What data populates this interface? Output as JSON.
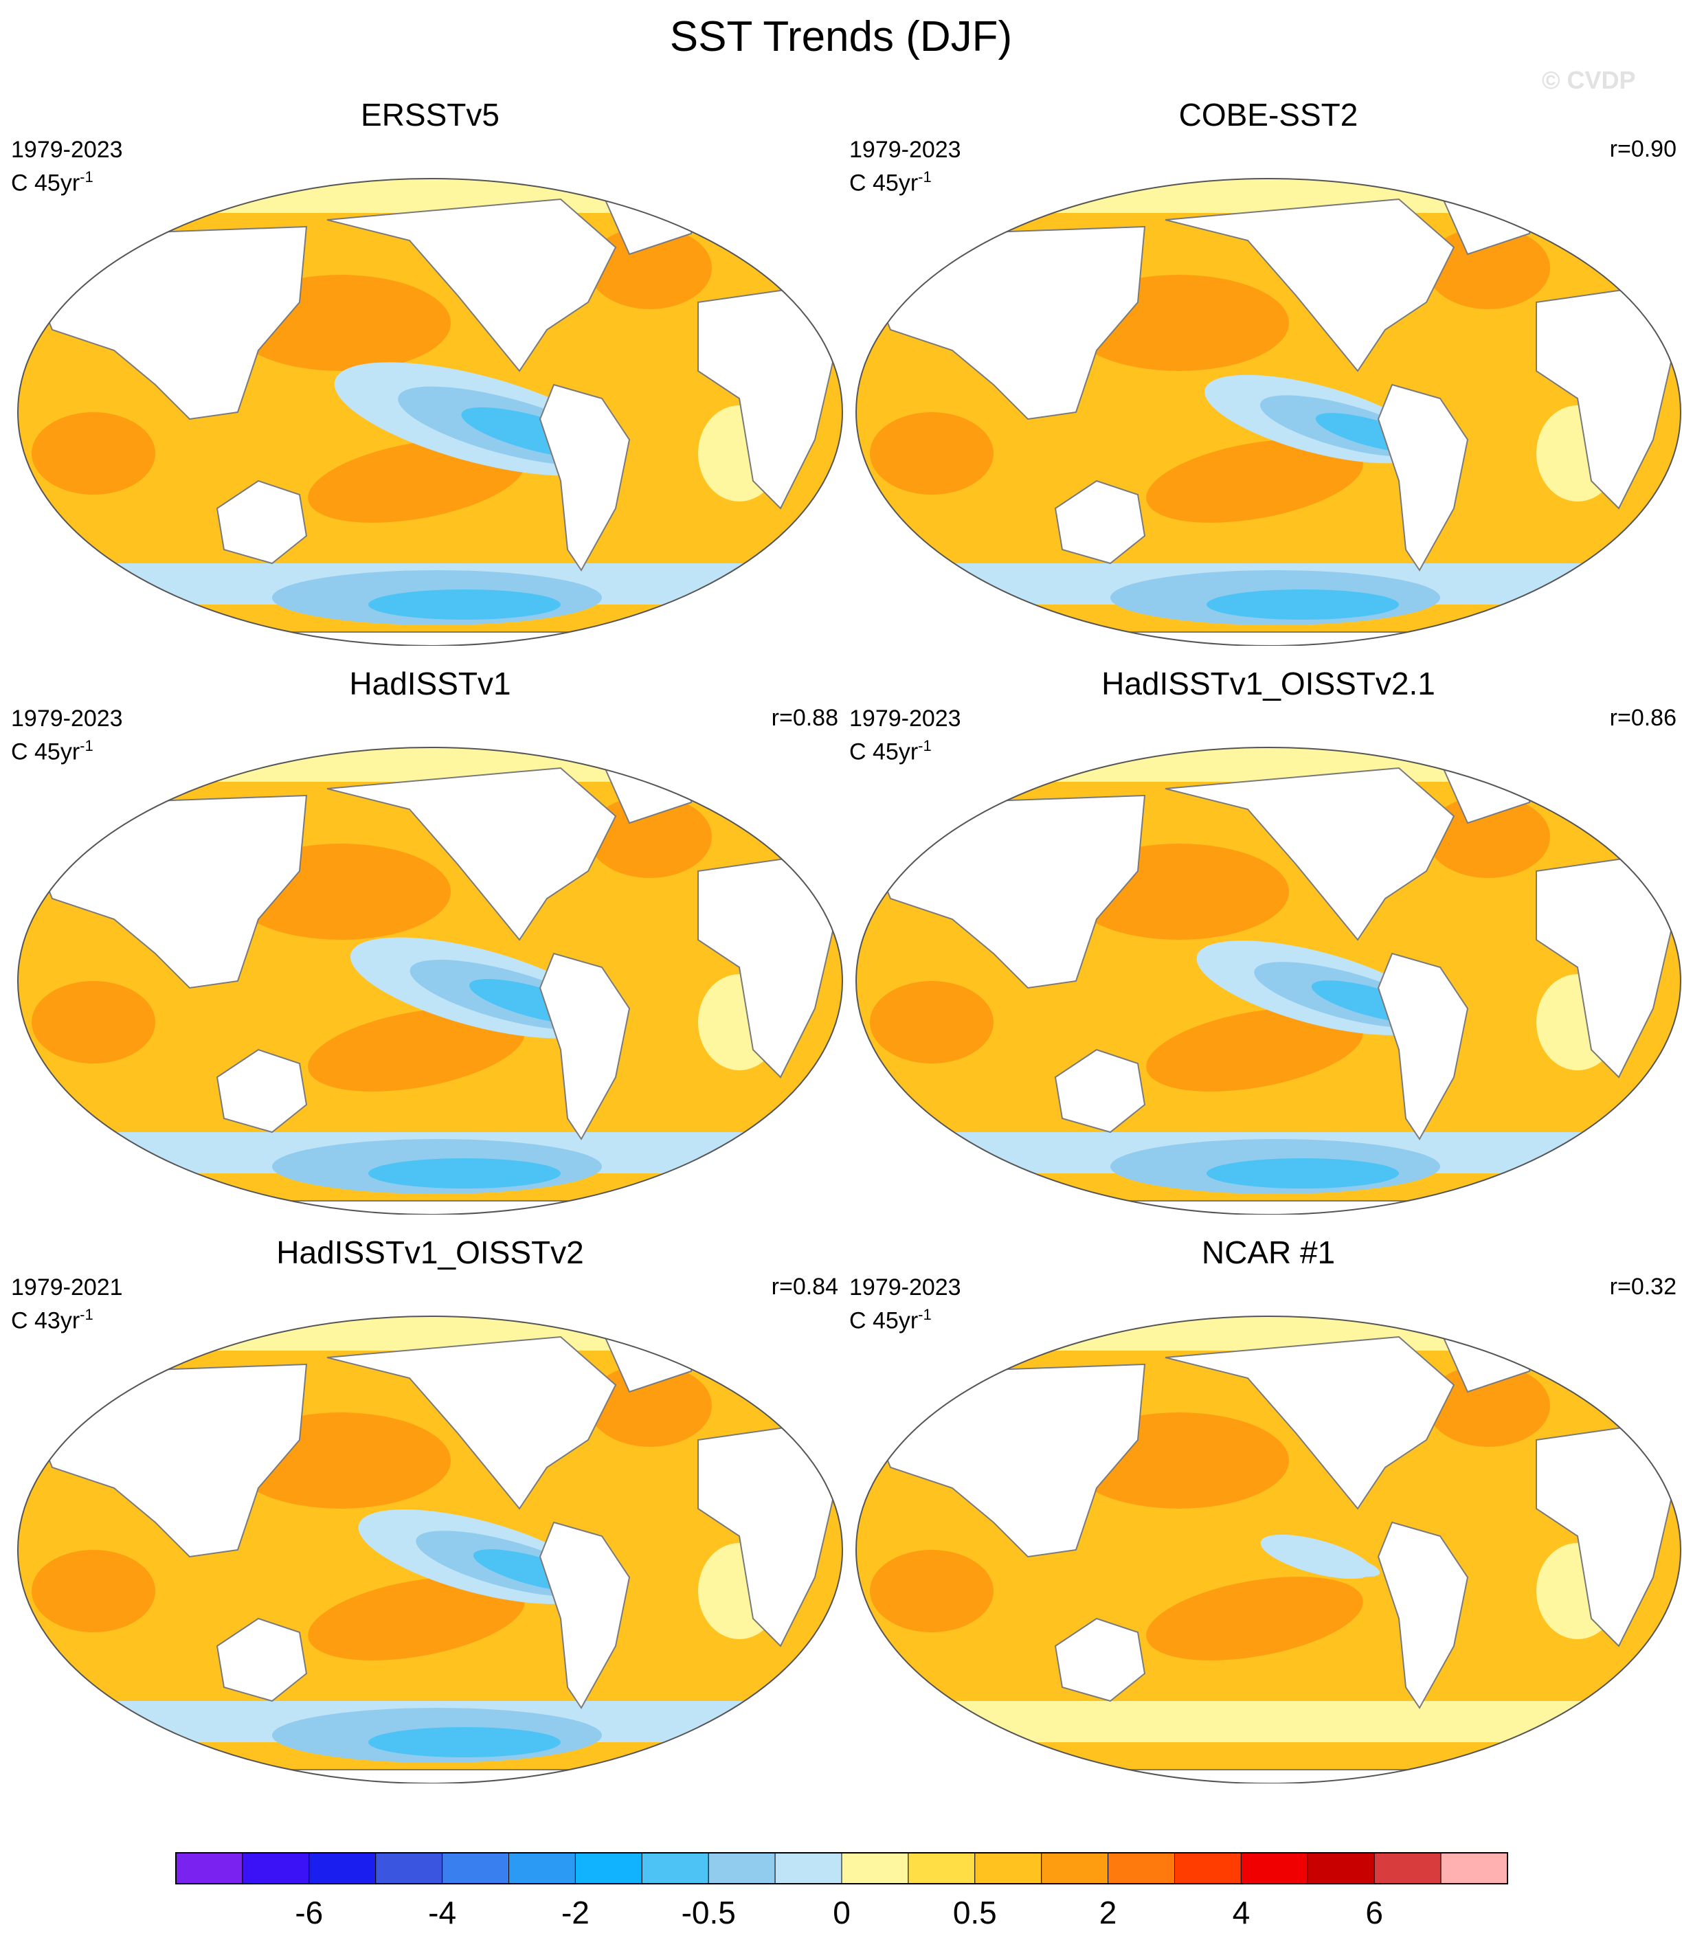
{
  "title": "SST Trends (DJF)",
  "watermark": "© CVDP",
  "panels": [
    {
      "title": "ERSSTv5",
      "period": "1979-2023",
      "units_base": "C 45yr",
      "units_exp": "-1",
      "corr": "",
      "colder_pacific": 0.9
    },
    {
      "title": "COBE-SST2",
      "period": "1979-2023",
      "units_base": "C 45yr",
      "units_exp": "-1",
      "corr": "r=0.90",
      "colder_pacific": 0.7
    },
    {
      "title": "HadISSTv1",
      "period": "1979-2023",
      "units_base": "C 45yr",
      "units_exp": "-1",
      "corr": "r=0.88",
      "colder_pacific": 0.8
    },
    {
      "title": "HadISSTv1_OISSTv2.1",
      "period": "1979-2023",
      "units_base": "C 45yr",
      "units_exp": "-1",
      "corr": "r=0.86",
      "colder_pacific": 0.75
    },
    {
      "title": "HadISSTv1_OISSTv2",
      "period": "1979-2021",
      "units_base": "C 43yr",
      "units_exp": "-1",
      "corr": "r=0.84",
      "colder_pacific": 0.75
    },
    {
      "title": "NCAR #1",
      "period": "1979-2023",
      "units_base": "C 45yr",
      "units_exp": "-1",
      "corr": "r=0.32",
      "colder_pacific": 0.2
    }
  ],
  "colorbar": {
    "colors": [
      "#7a22f0",
      "#3a12f5",
      "#1a1ff0",
      "#3a55e0",
      "#3a7ff0",
      "#2a9af5",
      "#11b3ff",
      "#4dc3f5",
      "#91ccee",
      "#bfe3f7",
      "#fff7a0",
      "#ffde45",
      "#ffc21f",
      "#ff9d10",
      "#ff7a0c",
      "#ff3d00",
      "#f00000",
      "#c80000",
      "#d83c3c",
      "#ffb0b0"
    ],
    "tick_labels": [
      "-6",
      "-4",
      "-2",
      "-0.5",
      "0",
      "0.5",
      "2",
      "4",
      "6"
    ]
  },
  "colors": {
    "land": "#ffffff",
    "coast": "#7a7a7a",
    "warm_strong": "#ff9d10",
    "warm": "#ffc21f",
    "warm_weak": "#ffde45",
    "neutral": "#fff7a0",
    "cool_weak": "#bfe3f7",
    "cool": "#91ccee",
    "cool_strong": "#4dc3f5",
    "cool_deep": "#2a9af5"
  }
}
